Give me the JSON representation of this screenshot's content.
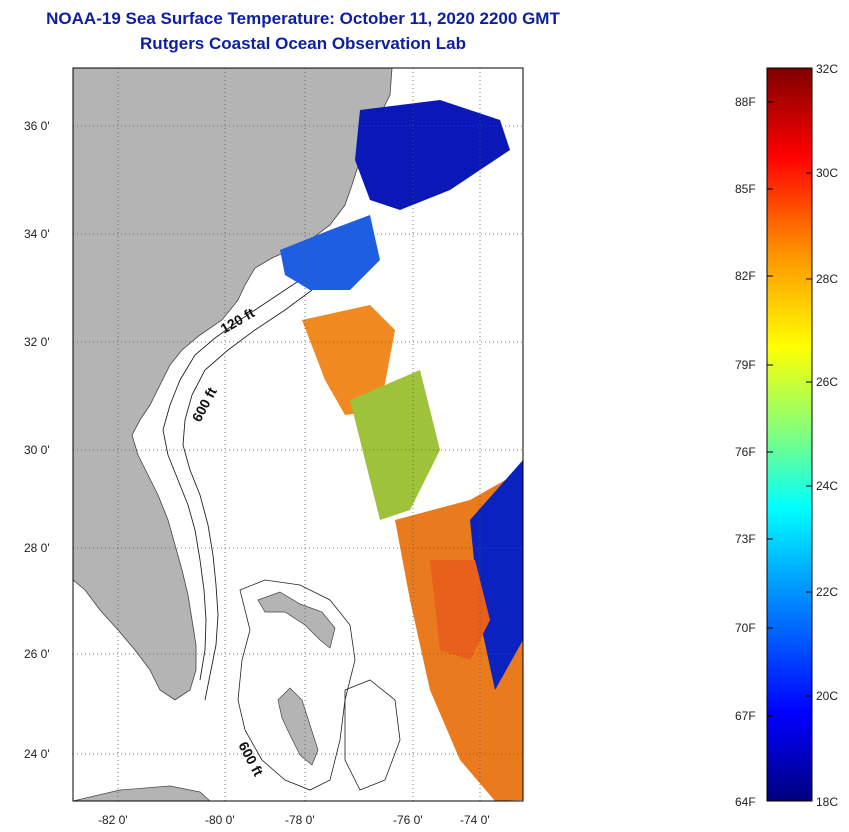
{
  "title_line1": "NOAA-19 Sea Surface Temperature:  October 11, 2020 2200 GMT",
  "title_line2": "Rutgers Coastal Ocean Observation Lab",
  "map": {
    "lat_ticks": [
      "36 0'",
      "34 0'",
      "32 0'",
      "30 0'",
      "28 0'",
      "26 0'",
      "24 0'"
    ],
    "lon_ticks": [
      "-82 0'",
      "-80 0'",
      "-78 0'",
      "-76 0'",
      "-74 0'"
    ],
    "contours": [
      "120 ft",
      "600 ft",
      "600 ft"
    ],
    "colors": {
      "land": "#b4b4b4",
      "ocean": "#ffffff"
    }
  },
  "colorbar": {
    "fahrenheit": [
      "88F",
      "85F",
      "82F",
      "79F",
      "76F",
      "73F",
      "70F",
      "67F",
      "64F"
    ],
    "celsius": [
      "32C",
      "30C",
      "28C",
      "26C",
      "24C",
      "22C",
      "20C",
      "18C"
    ],
    "colors": [
      "#00007f",
      "#0000ff",
      "#00a0ff",
      "#00ffff",
      "#7fff7f",
      "#ffff00",
      "#ff9000",
      "#ff0000",
      "#7f0000"
    ]
  }
}
